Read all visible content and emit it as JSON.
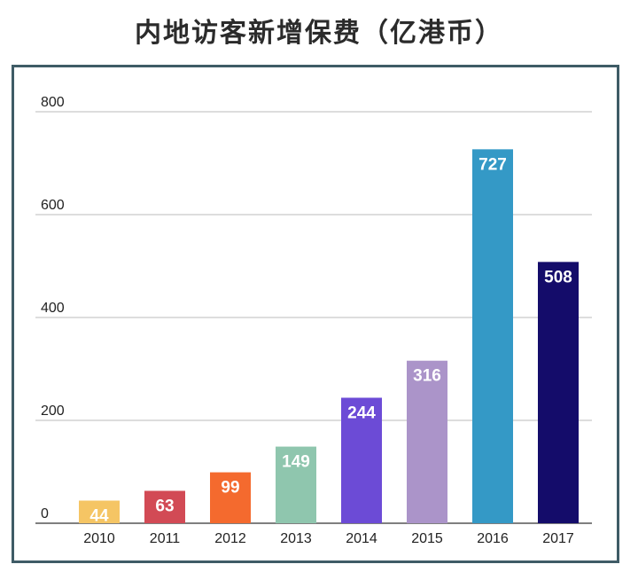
{
  "chart_data": {
    "type": "bar",
    "title": "内地访客新增保费（亿港币）",
    "categories": [
      "2010",
      "2011",
      "2012",
      "2013",
      "2014",
      "2015",
      "2016",
      "2017"
    ],
    "values": [
      44,
      63,
      99,
      149,
      244,
      316,
      727,
      508
    ],
    "colors": [
      "#f5c564",
      "#d24a55",
      "#f46a2e",
      "#8fc6ae",
      "#6c4bd6",
      "#ab94c9",
      "#3499c6",
      "#140c6a"
    ],
    "ylim": [
      0,
      800
    ],
    "yticks": [
      0,
      200,
      400,
      600,
      800
    ],
    "grid": true,
    "legend": "none"
  }
}
